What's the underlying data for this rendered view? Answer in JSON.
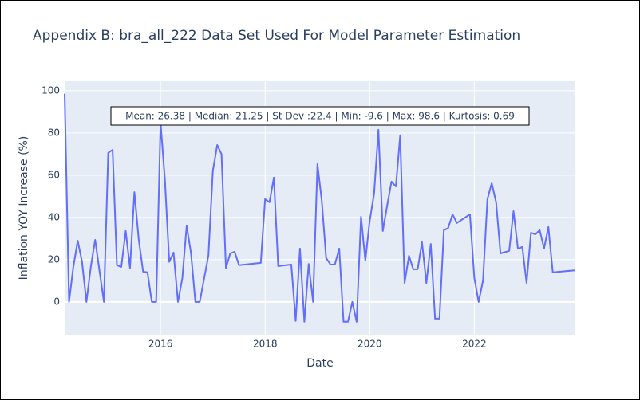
{
  "chart_data": {
    "type": "line",
    "title": "Appendix B: bra_all_222 Data Set Used For Model Parameter Estimation",
    "xlabel": "Date",
    "ylabel": "Inflation YOY Increase (%)",
    "annotation": "Mean: 26.38 | Median: 21.25 | St Dev :22.4 | Min: -9.6 | Max: 98.6 | Kurtosis: 0.69",
    "x": [
      "2014-03",
      "2014-04",
      "2014-05",
      "2014-06",
      "2014-07",
      "2014-08",
      "2014-09",
      "2014-10",
      "2014-11",
      "2014-12",
      "2015-01",
      "2015-02",
      "2015-03",
      "2015-04",
      "2015-05",
      "2015-06",
      "2015-07",
      "2015-08",
      "2015-09",
      "2015-10",
      "2015-11",
      "2015-12",
      "2016-01",
      "2016-02",
      "2016-03",
      "2016-04",
      "2016-05",
      "2016-06",
      "2016-07",
      "2016-08",
      "2016-09",
      "2016-10",
      "2016-12",
      "2017-01",
      "2017-02",
      "2017-03",
      "2017-04",
      "2017-05",
      "2017-06",
      "2017-07",
      "2017-12",
      "2018-01",
      "2018-02",
      "2018-03",
      "2018-04",
      "2018-07",
      "2018-08",
      "2018-09",
      "2018-10",
      "2018-11",
      "2018-12",
      "2019-01",
      "2019-02",
      "2019-03",
      "2019-04",
      "2019-05",
      "2019-06",
      "2019-07",
      "2019-08",
      "2019-09",
      "2019-10",
      "2019-11",
      "2019-12",
      "2020-01",
      "2020-02",
      "2020-03",
      "2020-04",
      "2020-05",
      "2020-06",
      "2020-07",
      "2020-08",
      "2020-09",
      "2020-10",
      "2020-11",
      "2020-12",
      "2021-01",
      "2021-02",
      "2021-03",
      "2021-04",
      "2021-05",
      "2021-06",
      "2021-07",
      "2021-08",
      "2021-09",
      "2021-12",
      "2022-01",
      "2022-02",
      "2022-03",
      "2022-04",
      "2022-05",
      "2022-06",
      "2022-07",
      "2022-09",
      "2022-10",
      "2022-11",
      "2022-12",
      "2023-01",
      "2023-02",
      "2023-03",
      "2023-04",
      "2023-05",
      "2023-06",
      "2023-07",
      "2023-12"
    ],
    "series": [
      {
        "name": "bra_all_222",
        "color": "#636efa",
        "values": [
          98.6,
          0,
          16.6,
          29,
          19,
          0,
          16.6,
          29.4,
          14.7,
          0,
          70.6,
          72,
          17.4,
          16.6,
          33.6,
          16,
          52,
          29.8,
          14.3,
          14,
          0,
          0,
          85,
          58,
          19,
          23.4,
          0,
          11.3,
          36,
          23,
          0,
          0,
          22,
          62,
          74.3,
          70,
          16,
          23,
          23.8,
          17.4,
          18.5,
          48.7,
          47.2,
          58.9,
          17,
          17.7,
          -9,
          25.3,
          -9.4,
          18,
          0,
          65.3,
          48,
          20.8,
          17.7,
          17.7,
          25.3,
          -9.4,
          -9.4,
          0,
          -9.4,
          40.4,
          19.6,
          38.5,
          51.3,
          81.5,
          33.6,
          45.7,
          57,
          54.7,
          78.9,
          9,
          21.9,
          15.5,
          15.5,
          28.3,
          9,
          27.5,
          -7.9,
          -7.9,
          34,
          35,
          41.5,
          37.4,
          41.5,
          11.3,
          0,
          10.2,
          48.7,
          56.2,
          47.2,
          23,
          24.2,
          43,
          25.3,
          26,
          9,
          32.8,
          32,
          34,
          25.3,
          35.5,
          14,
          15
        ]
      }
    ],
    "xlim": [
      "2014-03",
      "2023-12"
    ],
    "xticks": [
      "2016",
      "2018",
      "2020",
      "2022"
    ],
    "ylim": [
      -15.5,
      104.5
    ],
    "yticks": [
      0,
      20,
      40,
      60,
      80,
      100
    ],
    "grid": true
  }
}
